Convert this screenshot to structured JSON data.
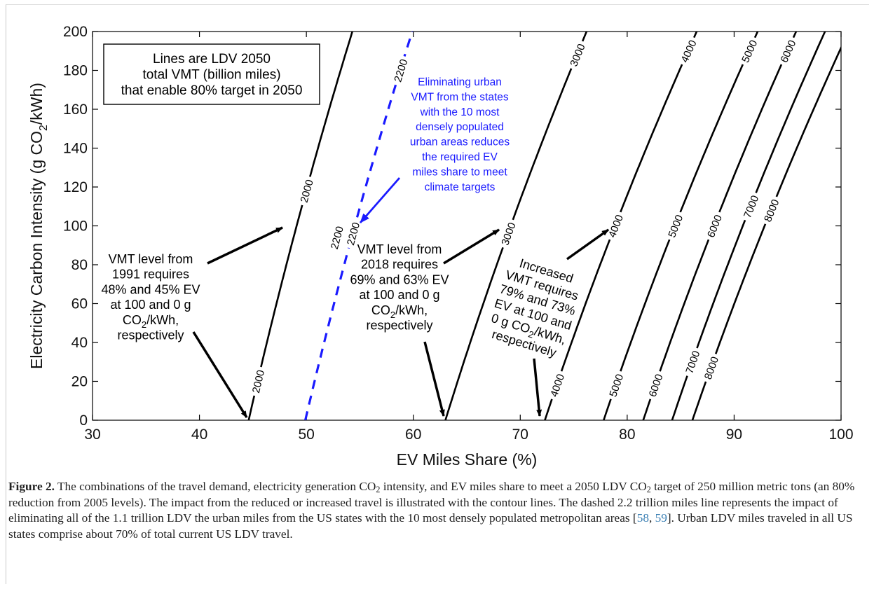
{
  "chart_data": {
    "type": "line",
    "xlabel": "EV Miles Share (%)",
    "ylabel_parts": {
      "main": "Electricity Carbon Intensity (g CO",
      "sub": "2",
      "tail": "/kWh)"
    },
    "xlim": [
      30,
      100
    ],
    "ylim": [
      0,
      200
    ],
    "xticks": [
      "30",
      "40",
      "50",
      "60",
      "70",
      "80",
      "90",
      "100"
    ],
    "yticks": [
      "0",
      "20",
      "40",
      "60",
      "80",
      "100",
      "120",
      "140",
      "160",
      "180",
      "200"
    ],
    "grid": false,
    "legend_box_lines": [
      "Lines are LDV 2050",
      "total VMT (billion miles)",
      "that enable 80% target in 2050"
    ],
    "series": [
      {
        "name": "2000",
        "style": "solid",
        "color": "#000000",
        "x0": 44.6,
        "x200": 54.3,
        "labels": [
          "2000",
          "2000"
        ]
      },
      {
        "name": "2200",
        "style": "dashed",
        "color": "#1a1aff",
        "x0": 49.9,
        "x200": 59.9,
        "labels": [
          "2200",
          "2200",
          "2200"
        ]
      },
      {
        "name": "3000",
        "style": "solid",
        "color": "#000000",
        "x0": 63.0,
        "x200": 76.2,
        "labels": [
          "3000",
          "3000"
        ]
      },
      {
        "name": "4000",
        "style": "solid",
        "color": "#000000",
        "x0": 72.3,
        "x200": 86.5,
        "labels": [
          "4000",
          "4000",
          "4000"
        ]
      },
      {
        "name": "5000",
        "style": "solid",
        "color": "#000000",
        "x0": 77.8,
        "x200": 92.2,
        "labels": [
          "5000",
          "5000",
          "5000"
        ]
      },
      {
        "name": "6000",
        "style": "solid",
        "color": "#000000",
        "x0": 81.5,
        "x200": 95.8,
        "labels": [
          "6000",
          "6000",
          "6000"
        ]
      },
      {
        "name": "7000",
        "style": "solid",
        "color": "#000000",
        "x0": 84.2,
        "x200": 98.5,
        "labels": [
          "7000",
          "7000"
        ]
      },
      {
        "name": "8000",
        "style": "solid",
        "color": "#000000",
        "x0": 86.1,
        "x200": 100.7,
        "labels": [
          "8000",
          "8000"
        ]
      }
    ],
    "annotations": [
      {
        "id": "blue-note",
        "color": "#1a1aff",
        "lines": [
          "Eliminating urban",
          "VMT from the states",
          "with the 10 most",
          "densely populated",
          "urban areas reduces",
          "the required EV",
          "miles share to meet",
          "climate targets"
        ]
      },
      {
        "id": "note-1991",
        "color": "#000000",
        "lines": [
          "VMT level from",
          "1991 requires",
          "48% and 45% EV",
          "at 100 and 0 g",
          "CO2/kWh,",
          "respectively"
        ]
      },
      {
        "id": "note-2018",
        "color": "#000000",
        "lines": [
          "VMT level from",
          "2018 requires",
          "69% and 63% EV",
          "at 100 and 0 g",
          "CO2/kWh,",
          "respectively"
        ]
      },
      {
        "id": "note-increased",
        "color": "#000000",
        "lines": [
          "Increased",
          "VMT requires",
          "79% and 73%",
          "EV at 100 and",
          "0 g CO2/kWh,",
          "respectively"
        ]
      }
    ]
  },
  "caption": {
    "label": "Figure 2.",
    "t1": " The combinations of the travel demand, electricity generation CO",
    "sub1": "2",
    "t2": " intensity, and EV miles share to meet a 2050 LDV CO",
    "sub2": "2",
    "t3": " target of 250 million metric tons (an 80% reduction from 2005 levels). The impact from the reduced or increased travel is illustrated with the contour lines. The dashed 2.2 trillion miles line represents the impact of eliminating all of the 1.1 trillion LDV the urban miles from the US states with the 10 most densely populated metropolitan areas [",
    "ref1": "58",
    "sep": ", ",
    "ref2": "59",
    "t4": "]. Urban LDV miles traveled in all US states comprise about 70% of total current US LDV travel."
  }
}
